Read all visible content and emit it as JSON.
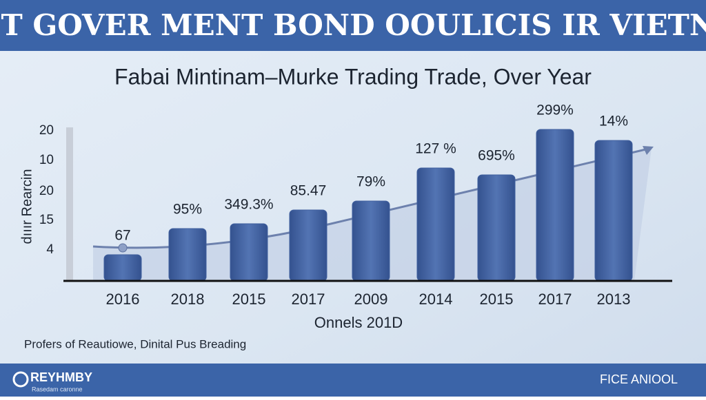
{
  "chart_data": {
    "type": "bar",
    "header": "HIBT GOVER MENT BOND OOULICIS IR VIETNAM",
    "title": "Fabai Mintinam–Murke Trading Trade, Over Year",
    "y_label": "dııır Rearcin",
    "x_label": "Onnels  201D",
    "y_axis_labels": [
      "20",
      "10",
      "20",
      "15",
      "4"
    ],
    "categories": [
      "2016",
      "2018",
      "2015",
      "2017",
      "2009",
      "2014",
      "2015",
      "2017",
      "2013"
    ],
    "values": [
      38,
      76,
      83,
      103,
      116,
      164,
      154,
      220,
      204
    ],
    "annotations": [
      "67",
      "95%",
      "349.3%",
      "85.47",
      "79%",
      "127 %",
      "695%",
      "299%",
      "14%"
    ],
    "ylim": [
      0,
      240
    ],
    "color": "#3f5f9e",
    "note": "Profers of Reautiowe, Dinital Pus Breading",
    "footer_left": "REYHMBY",
    "footer_left_sub": "Rasedam caronne",
    "footer_right": "FICE ANIOOL"
  }
}
